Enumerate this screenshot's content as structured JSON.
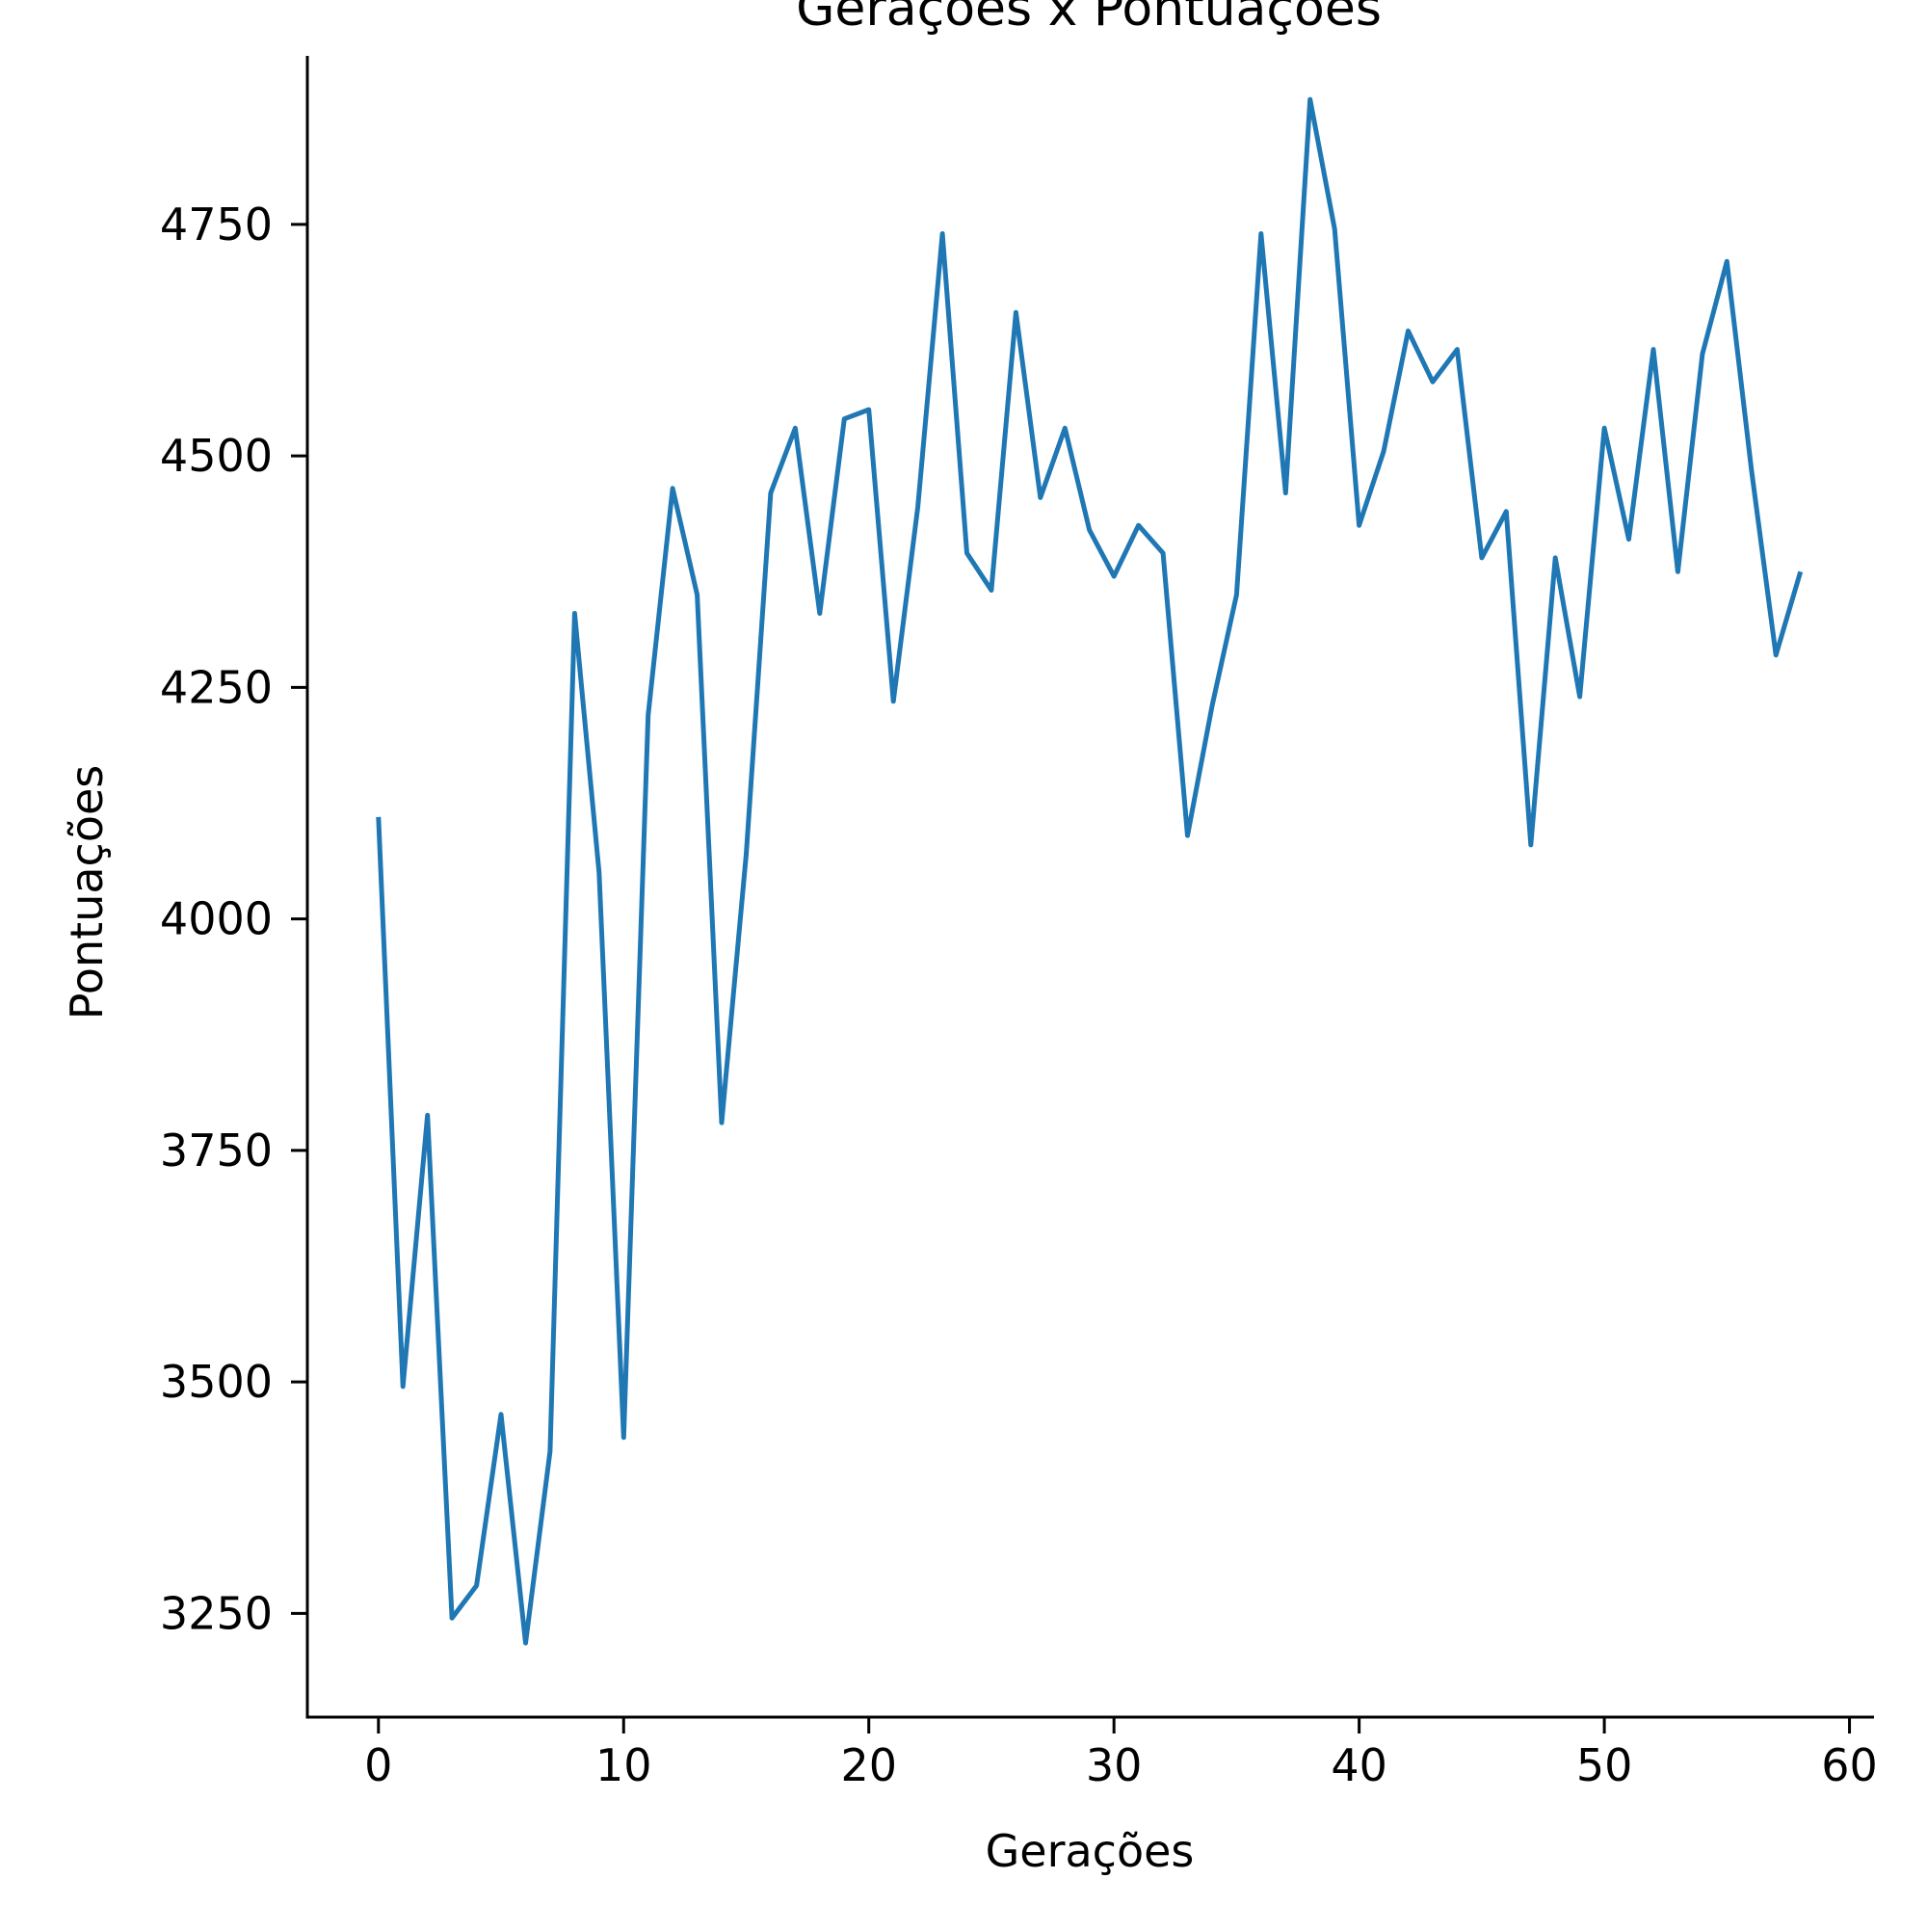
{
  "chart_data": {
    "type": "line",
    "title": "Gerações x Pontuações",
    "xlabel": "Gerações",
    "ylabel": "Pontuações",
    "xlim": [
      -2.9,
      61.0
    ],
    "ylim": [
      3138,
      4932
    ],
    "x_ticks": [
      0,
      10,
      20,
      30,
      40,
      50,
      60
    ],
    "y_ticks": [
      3250,
      3500,
      3750,
      4000,
      4250,
      4500,
      4750
    ],
    "grid": false,
    "legend": "none",
    "line_color": "#1f77b4",
    "series": [
      {
        "x": [
          0,
          1,
          2,
          3,
          4,
          5,
          6,
          7,
          8,
          9,
          10,
          11,
          12,
          13,
          14,
          15,
          16,
          17,
          18,
          19,
          20,
          21,
          22,
          23,
          24,
          25,
          26,
          27,
          28,
          29,
          30,
          31,
          32,
          33,
          34,
          35,
          36,
          37,
          38,
          39,
          40,
          41,
          42,
          43,
          44,
          45,
          46,
          47,
          48,
          49,
          50,
          51,
          52,
          53,
          54,
          55,
          56,
          57,
          58
        ],
        "values": [
          4110,
          3495,
          3788,
          3245,
          3280,
          3465,
          3218,
          3425,
          4330,
          4050,
          3440,
          4220,
          4465,
          4350,
          3780,
          4070,
          4460,
          4530,
          4330,
          4540,
          4550,
          4235,
          4445,
          4740,
          4395,
          4355,
          4655,
          4455,
          4530,
          4420,
          4370,
          4425,
          4395,
          4090,
          4230,
          4350,
          4740,
          4460,
          4885,
          4745,
          4425,
          4505,
          4635,
          4580,
          4615,
          4390,
          4440,
          4080,
          4390,
          4240,
          4530,
          4410,
          4615,
          4375,
          4610,
          4710,
          4485,
          4285,
          4375
        ]
      }
    ]
  }
}
